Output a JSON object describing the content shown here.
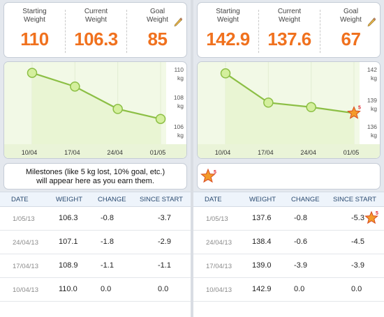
{
  "left": {
    "stats": {
      "starting_label": "Starting\nWeight",
      "starting_value": "110",
      "current_label": "Current\nWeight",
      "current_value": "106.3",
      "goal_label": "Goal\nWeight",
      "goal_value": "85"
    },
    "chart_data": {
      "type": "line",
      "x": [
        "10/04",
        "17/04",
        "24/04",
        "01/05"
      ],
      "values": [
        110.0,
        108.9,
        107.1,
        106.3
      ],
      "y_ticks": [
        "110",
        "108",
        "106"
      ],
      "y_unit": "kg",
      "ylim": [
        105.5,
        110.2
      ]
    },
    "milestones_text": "Milestones (like 5 kg lost, 10% goal, etc.)\nwill appear here as you earn them.",
    "table": {
      "headers": [
        "DATE",
        "WEIGHT",
        "CHANGE",
        "SINCE START"
      ],
      "rows": [
        {
          "date": "1/05/13",
          "weight": "106.3",
          "change": "-0.8",
          "since": "-3.7"
        },
        {
          "date": "24/04/13",
          "weight": "107.1",
          "change": "-1.8",
          "since": "-2.9"
        },
        {
          "date": "17/04/13",
          "weight": "108.9",
          "change": "-1.1",
          "since": "-1.1"
        },
        {
          "date": "10/04/13",
          "weight": "110.0",
          "change": "0.0",
          "since": "0.0"
        }
      ]
    }
  },
  "right": {
    "stats": {
      "starting_label": "Starting\nWeight",
      "starting_value": "142.9",
      "current_label": "Current\nWeight",
      "current_value": "137.6",
      "goal_label": "Goal\nWeight",
      "goal_value": "67"
    },
    "chart_data": {
      "type": "line",
      "x": [
        "10/04",
        "17/04",
        "24/04",
        "01/05"
      ],
      "values": [
        142.9,
        139.0,
        138.4,
        137.6
      ],
      "y_ticks": [
        "142",
        "139",
        "136"
      ],
      "y_unit": "kg",
      "ylim": [
        135.5,
        143.3
      ]
    },
    "milestone_badge": "5",
    "table": {
      "headers": [
        "DATE",
        "WEIGHT",
        "CHANGE",
        "SINCE START"
      ],
      "rows": [
        {
          "date": "1/05/13",
          "weight": "137.6",
          "change": "-0.8",
          "since": "-5.3",
          "badge": "5"
        },
        {
          "date": "24/04/13",
          "weight": "138.4",
          "change": "-0.6",
          "since": "-4.5"
        },
        {
          "date": "17/04/13",
          "weight": "139.0",
          "change": "-3.9",
          "since": "-3.9"
        },
        {
          "date": "10/04/13",
          "weight": "142.9",
          "change": "0.0",
          "since": "0.0"
        }
      ]
    }
  },
  "colors": {
    "accent_orange": "#f0711e",
    "line_green": "#8cbf45",
    "point_fill": "#d4ef9d",
    "plot_bg": "#f2f9e6"
  }
}
